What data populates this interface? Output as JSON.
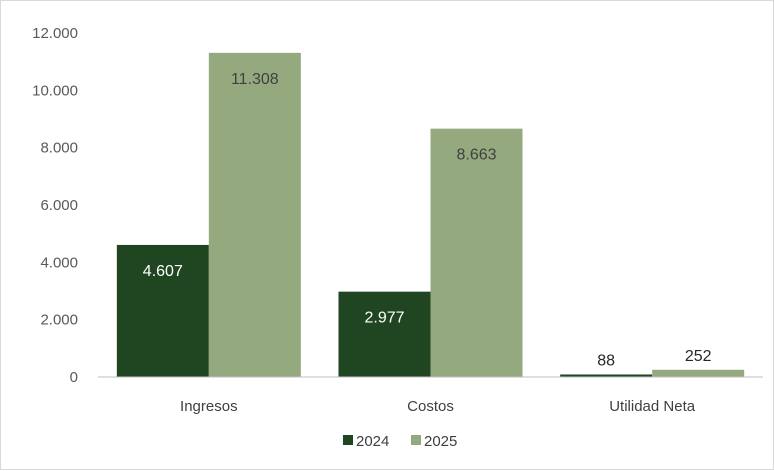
{
  "chart_data": {
    "type": "bar",
    "title": "",
    "xlabel": "",
    "ylabel": "",
    "categories": [
      "Ingresos",
      "Costos",
      "Utilidad Neta"
    ],
    "series": [
      {
        "name": "2024",
        "color": "#1f4620",
        "label_color": "#ffffff",
        "values": [
          4607,
          2977,
          88
        ],
        "data_labels": [
          "4.607",
          "2.977",
          "88"
        ]
      },
      {
        "name": "2025",
        "color": "#94a97e",
        "label_color": "#404040",
        "values": [
          11308,
          8663,
          252
        ],
        "data_labels": [
          "11.308",
          "8.663",
          "252"
        ]
      }
    ],
    "ylim": [
      0,
      12000
    ],
    "yticks": [
      0,
      2000,
      4000,
      6000,
      8000,
      10000,
      12000
    ],
    "ytick_labels": [
      "0",
      "2.000",
      "4.000",
      "6.000",
      "8.000",
      "10.000",
      "12.000"
    ],
    "grid": false,
    "legend": {
      "position": "bottom",
      "entries": [
        "2024",
        "2025"
      ]
    },
    "axis_color": "#bfbfbf"
  }
}
